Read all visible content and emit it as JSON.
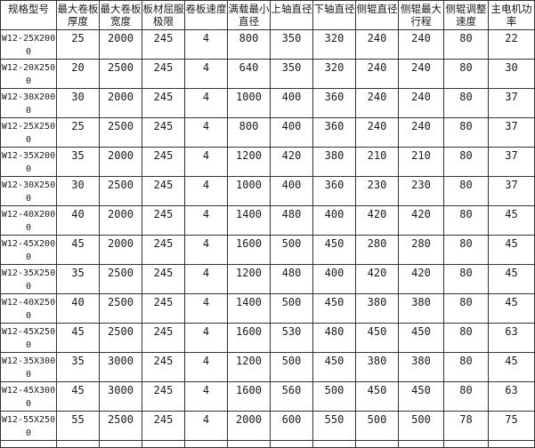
{
  "page": {
    "background_color": "#ffffff",
    "border_color": "#333333",
    "text_color": "#1a1a1a"
  },
  "table": {
    "columns": [
      "规格型号",
      "最大卷板厚度",
      "最大卷板宽度",
      "板材屈服极限",
      "卷板速度",
      "满载最小直径",
      "上轴直径",
      "下轴直径",
      "侧辊直径",
      "侧辊最大行程",
      "侧辊调整速度",
      "主电机功率"
    ],
    "rows": [
      [
        "W12-25X2000",
        25,
        2000,
        245,
        4,
        800,
        350,
        320,
        240,
        240,
        80,
        22
      ],
      [
        "W12-20X2500",
        20,
        2500,
        245,
        4,
        640,
        350,
        320,
        240,
        240,
        80,
        30
      ],
      [
        "W12-30X2000",
        30,
        2000,
        245,
        4,
        1000,
        400,
        360,
        240,
        240,
        80,
        37
      ],
      [
        "W12-25X2500",
        25,
        2500,
        245,
        4,
        800,
        400,
        360,
        240,
        240,
        80,
        37
      ],
      [
        "W12-35X2000",
        35,
        2000,
        245,
        4,
        1200,
        420,
        380,
        210,
        210,
        80,
        37
      ],
      [
        "W12-30X2500",
        30,
        2500,
        245,
        4,
        1000,
        400,
        360,
        230,
        230,
        80,
        37
      ],
      [
        "W12-40X2000",
        40,
        2000,
        245,
        4,
        1400,
        480,
        400,
        420,
        420,
        80,
        45
      ],
      [
        "W12-45X2000",
        45,
        2000,
        245,
        4,
        1600,
        500,
        450,
        280,
        280,
        80,
        45
      ],
      [
        "W12-35X2500",
        35,
        2500,
        245,
        4,
        1200,
        480,
        400,
        420,
        420,
        80,
        45
      ],
      [
        "W12-40X2500",
        40,
        2500,
        245,
        4,
        1400,
        500,
        450,
        380,
        380,
        80,
        45
      ],
      [
        "W12-45X2500",
        45,
        2500,
        245,
        4,
        1600,
        530,
        480,
        450,
        450,
        80,
        63
      ],
      [
        "W12-35X3000",
        35,
        3000,
        245,
        4,
        1200,
        500,
        450,
        380,
        380,
        80,
        45
      ],
      [
        "W12-45X3000",
        45,
        3000,
        245,
        4,
        1600,
        560,
        500,
        450,
        450,
        80,
        63
      ],
      [
        "W12-55X2500",
        55,
        2500,
        245,
        4,
        2000,
        600,
        550,
        500,
        500,
        78,
        75
      ]
    ]
  }
}
